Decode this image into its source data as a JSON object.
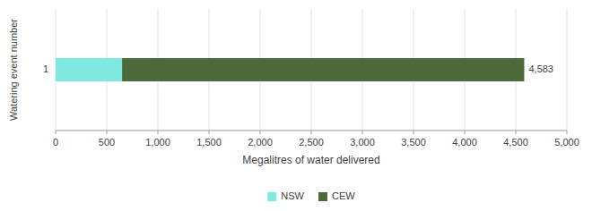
{
  "chart_data": {
    "type": "bar",
    "orientation": "horizontal",
    "stacked": true,
    "categories": [
      "1"
    ],
    "series": [
      {
        "name": "NSW",
        "color": "#7FE8E0",
        "values": [
          650
        ]
      },
      {
        "name": "CEW",
        "color": "#4D6B3A",
        "values": [
          3933
        ]
      }
    ],
    "annotations": [
      {
        "text": "4,583",
        "x": 4583
      }
    ],
    "xlabel": "Megalitres of water delivered",
    "ylabel": "Watering event number",
    "xlim": [
      0,
      5000
    ],
    "xticks": [
      0,
      500,
      {
        "value": 1000,
        "label": "1,000"
      },
      {
        "value": 1500,
        "label": "1,500"
      },
      {
        "value": 2000,
        "label": "2,000"
      },
      {
        "value": 2500,
        "label": "2,500"
      },
      {
        "value": 3000,
        "label": "3,000"
      },
      {
        "value": 3500,
        "label": "3,500"
      },
      {
        "value": 4000,
        "label": "4,000"
      },
      {
        "value": 4500,
        "label": "4,500"
      },
      {
        "value": 5000,
        "label": "5,000"
      }
    ],
    "grid": true,
    "legend": "bottom"
  }
}
